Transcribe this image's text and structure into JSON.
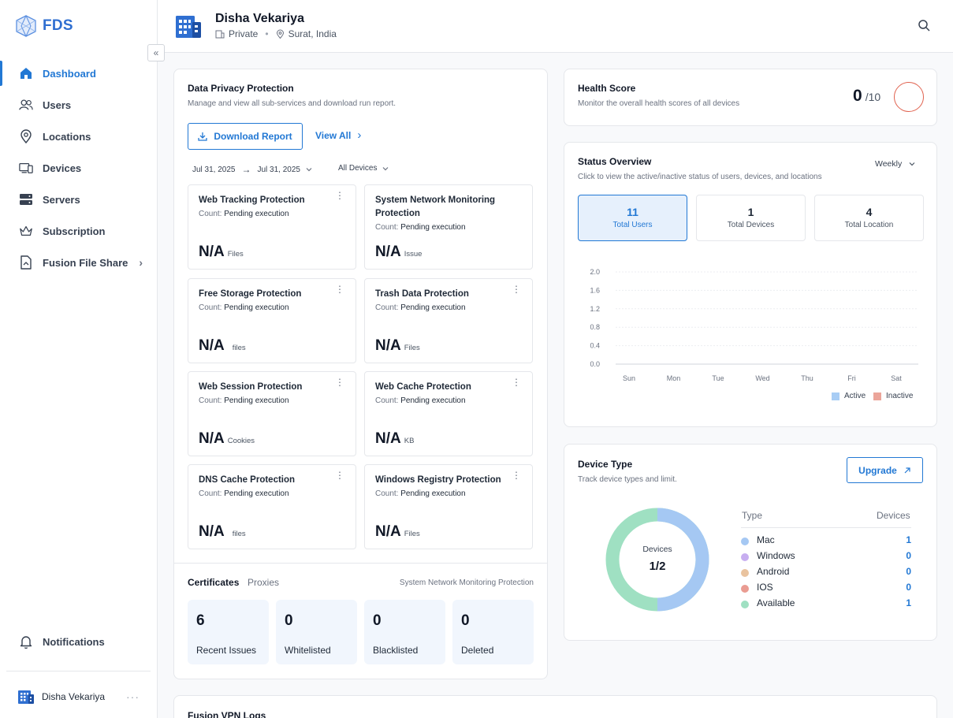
{
  "brand": {
    "name": "FDS"
  },
  "sidebar": {
    "items": [
      {
        "label": "Dashboard",
        "icon": "home-icon",
        "active": true
      },
      {
        "label": "Users",
        "icon": "users-icon"
      },
      {
        "label": "Locations",
        "icon": "location-pin-icon"
      },
      {
        "label": "Devices",
        "icon": "devices-icon"
      },
      {
        "label": "Servers",
        "icon": "server-icon"
      },
      {
        "label": "Subscription",
        "icon": "crown-icon"
      },
      {
        "label": "Fusion File Share",
        "icon": "file-share-icon",
        "has_submenu": true
      }
    ],
    "notifications_label": "Notifications",
    "user_name": "Disha Vekariya",
    "collapse_glyph": "«",
    "more_glyph": "···"
  },
  "header": {
    "name": "Disha Vekariya",
    "visibility": "Private",
    "location": "Surat, India"
  },
  "privacy": {
    "title": "Data Privacy Protection",
    "subtitle": "Manage and view all sub-services and download run report.",
    "download_label": "Download Report",
    "view_all_label": "View All",
    "date_from": "Jul 31, 2025",
    "date_to": "Jul 31, 2025",
    "device_filter": "All Devices",
    "count_prefix": "Count:",
    "services": [
      {
        "title": "Web Tracking Protection",
        "count": "Pending execution",
        "value": "N/A",
        "unit": "Files"
      },
      {
        "title": "System Network Monitoring Protection",
        "count": "Pending execution",
        "value": "N/A",
        "unit": "Issue"
      },
      {
        "title": "Free Storage Protection",
        "count": "Pending execution",
        "value": "N/A",
        "unit": "files"
      },
      {
        "title": "Trash Data Protection",
        "count": "Pending execution",
        "value": "N/A",
        "unit": "Files"
      },
      {
        "title": "Web Session Protection",
        "count": "Pending execution",
        "value": "N/A",
        "unit": "Cookies"
      },
      {
        "title": "Web Cache Protection",
        "count": "Pending execution",
        "value": "N/A",
        "unit": "KB"
      },
      {
        "title": "DNS Cache Protection",
        "count": "Pending execution",
        "value": "N/A",
        "unit": "files"
      },
      {
        "title": "Windows Registry Protection",
        "count": "Pending execution",
        "value": "N/A",
        "unit": "Files"
      }
    ]
  },
  "certificates": {
    "tabs": [
      "Certificates",
      "Proxies"
    ],
    "context": "System Network Monitoring Protection",
    "stats": [
      {
        "value": "6",
        "label": "Recent Issues"
      },
      {
        "value": "0",
        "label": "Whitelisted"
      },
      {
        "value": "0",
        "label": "Blacklisted"
      },
      {
        "value": "0",
        "label": "Deleted"
      }
    ]
  },
  "health": {
    "title": "Health Score",
    "subtitle": "Monitor the overall health scores of all devices",
    "score": "0",
    "max": "/10",
    "ring_color": "#e0624f"
  },
  "status": {
    "title": "Status Overview",
    "subtitle": "Click to view the active/inactive status of users, devices, and locations",
    "period": "Weekly",
    "boxes": [
      {
        "value": "11",
        "label": "Total Users",
        "active": true
      },
      {
        "value": "1",
        "label": "Total Devices"
      },
      {
        "value": "4",
        "label": "Total Location"
      }
    ]
  },
  "chart_data": {
    "type": "bar",
    "categories": [
      "Sun",
      "Mon",
      "Tue",
      "Wed",
      "Thu",
      "Fri",
      "Sat"
    ],
    "series": [
      {
        "name": "Active",
        "values": [
          0,
          0,
          0,
          0,
          0,
          0,
          0
        ],
        "color": "#a8cdf5"
      },
      {
        "name": "Inactive",
        "values": [
          0,
          0,
          0,
          0,
          0,
          0,
          0
        ],
        "color": "#eba59a"
      }
    ],
    "yticks": [
      "2.0",
      "1.6",
      "1.2",
      "0.8",
      "0.4",
      "0.0"
    ],
    "ylim": [
      0,
      2
    ],
    "legend": "bottom-right",
    "grid": true
  },
  "device_type": {
    "title": "Device Type",
    "subtitle": "Track device types and limit.",
    "upgrade_label": "Upgrade",
    "donut_label": "Devices",
    "donut_value": "1/2",
    "col_type": "Type",
    "col_devices": "Devices",
    "rows": [
      {
        "name": "Mac",
        "count": "1",
        "color": "#a5c8f3"
      },
      {
        "name": "Windows",
        "count": "0",
        "color": "#c7aef0"
      },
      {
        "name": "Android",
        "count": "0",
        "color": "#e9c39f"
      },
      {
        "name": "IOS",
        "count": "0",
        "color": "#ea9c92"
      },
      {
        "name": "Available",
        "count": "1",
        "color": "#9fe0c2"
      }
    ]
  },
  "vpn": {
    "title": "Fusion VPN Logs"
  }
}
